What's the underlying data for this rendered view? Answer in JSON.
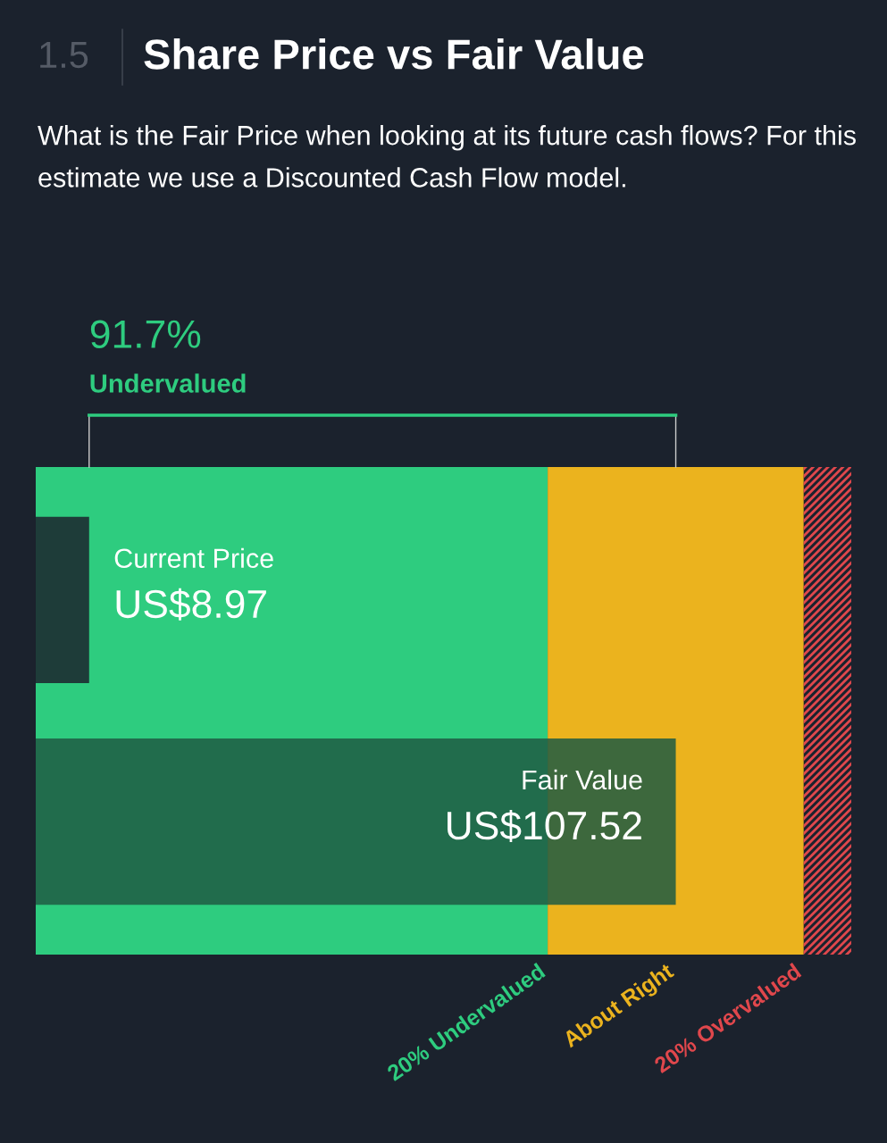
{
  "chart_data": {
    "type": "bar",
    "orientation": "horizontal",
    "title": "Share Price vs Fair Value",
    "subtitle": "What is the Fair Price when looking at its future cash flows? For this estimate we use a Discounted Cash Flow model.",
    "annotations": [
      "1.5",
      "91.7%",
      "Undervalued"
    ],
    "categories": [
      "Current Price",
      "Fair Value"
    ],
    "values": [
      8.97,
      107.52
    ],
    "colors": [
      "#1b222d",
      "#1f5a43"
    ],
    "value_labels": [
      "US$8.97",
      "US$107.52"
    ],
    "xlim": [
      0,
      137
    ],
    "bands": [
      {
        "axis": "x",
        "from": 0,
        "to": 86.0,
        "label": "20% Undervalued",
        "color": "#2ecc7f"
      },
      {
        "axis": "x",
        "from": 86.0,
        "to": 129.0,
        "label": "About Right",
        "color": "#ebb31e"
      },
      {
        "axis": "x",
        "from": 129.0,
        "to": 137,
        "label": "20% Overvalued",
        "color": "#e0474c"
      }
    ],
    "grid": false,
    "tick_labels": false
  }
}
